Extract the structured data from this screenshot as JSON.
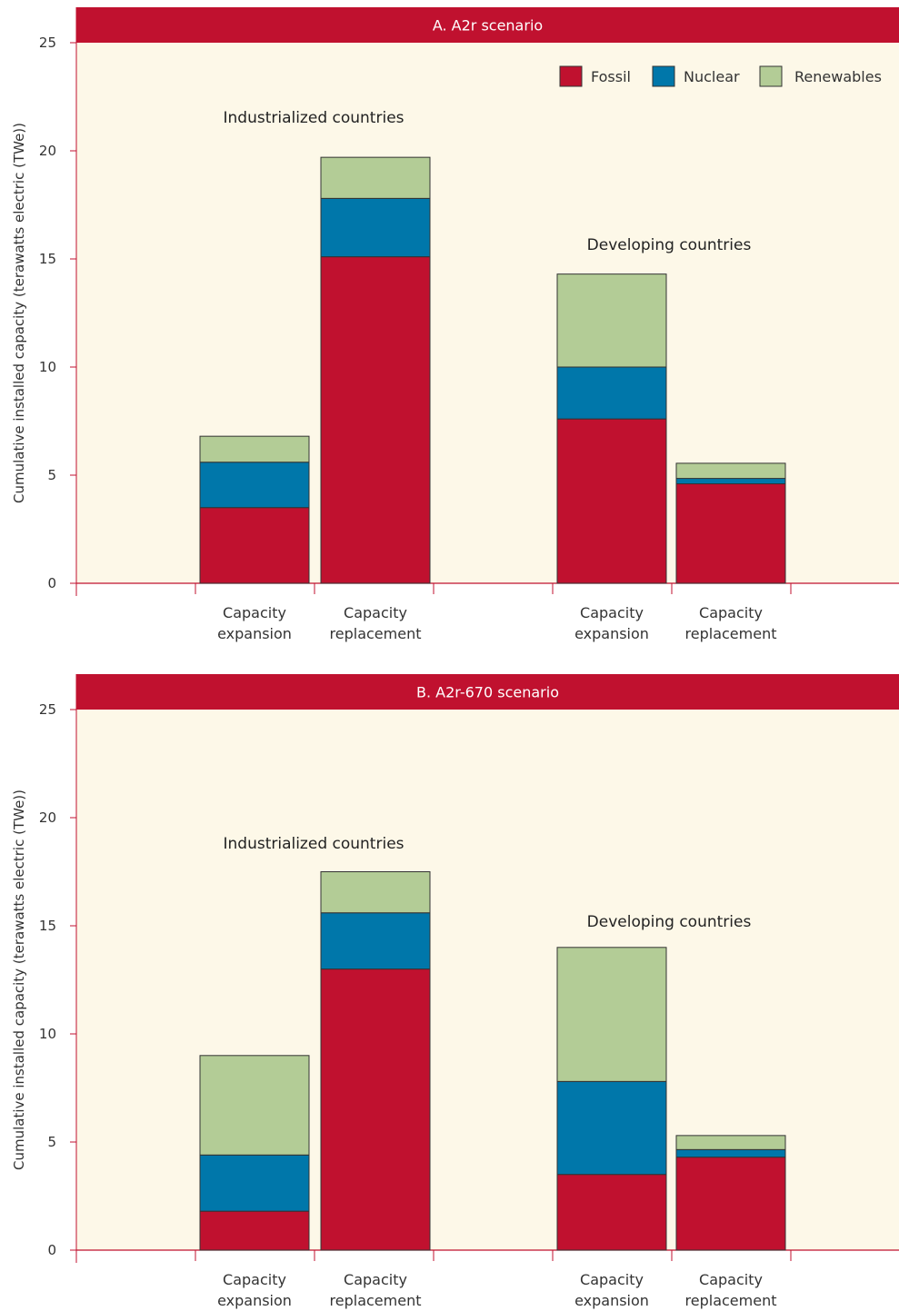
{
  "colors": {
    "fossil": "#c0112f",
    "nuclear": "#0077aa",
    "renewables": "#b3cc96",
    "header": "#c0112f",
    "plot_bg": "#fdf8e8",
    "axis": "#c0112f"
  },
  "legend": [
    "Fossil",
    "Nuclear",
    "Renewables"
  ],
  "chart_data": [
    {
      "type": "bar",
      "stacked": true,
      "title": "A. A2r scenario",
      "ylabel": "Cumulative installed capacity (terawatts electric (TWe))",
      "ylim": [
        0,
        25
      ],
      "yticks": [
        0,
        5,
        10,
        15,
        20,
        25
      ],
      "groups": [
        "Industrialized countries",
        "Developing countries"
      ],
      "categories": [
        [
          "Capacity",
          "expansion"
        ],
        [
          "Capacity",
          "replacement"
        ],
        [
          "Capacity",
          "expansion"
        ],
        [
          "Capacity",
          "replacement"
        ]
      ],
      "series": [
        {
          "name": "Fossil",
          "values": [
            3.5,
            15.1,
            7.6,
            4.6
          ]
        },
        {
          "name": "Nuclear",
          "values": [
            2.1,
            2.7,
            2.4,
            0.25
          ]
        },
        {
          "name": "Renewables",
          "values": [
            1.2,
            1.9,
            4.3,
            0.7
          ]
        }
      ],
      "legend_position": "top-right"
    },
    {
      "type": "bar",
      "stacked": true,
      "title": "B. A2r-670 scenario",
      "ylabel": "Cumulative installed capacity (terawatts electric (TWe))",
      "ylim": [
        0,
        25
      ],
      "yticks": [
        0,
        5,
        10,
        15,
        20,
        25
      ],
      "groups": [
        "Industrialized countries",
        "Developing countries"
      ],
      "categories": [
        [
          "Capacity",
          "expansion"
        ],
        [
          "Capacity",
          "replacement"
        ],
        [
          "Capacity",
          "expansion"
        ],
        [
          "Capacity",
          "replacement"
        ]
      ],
      "series": [
        {
          "name": "Fossil",
          "values": [
            1.8,
            13.0,
            3.5,
            4.3
          ]
        },
        {
          "name": "Nuclear",
          "values": [
            2.6,
            2.6,
            4.3,
            0.35
          ]
        },
        {
          "name": "Renewables",
          "values": [
            4.6,
            1.9,
            6.2,
            0.65
          ]
        }
      ]
    }
  ]
}
